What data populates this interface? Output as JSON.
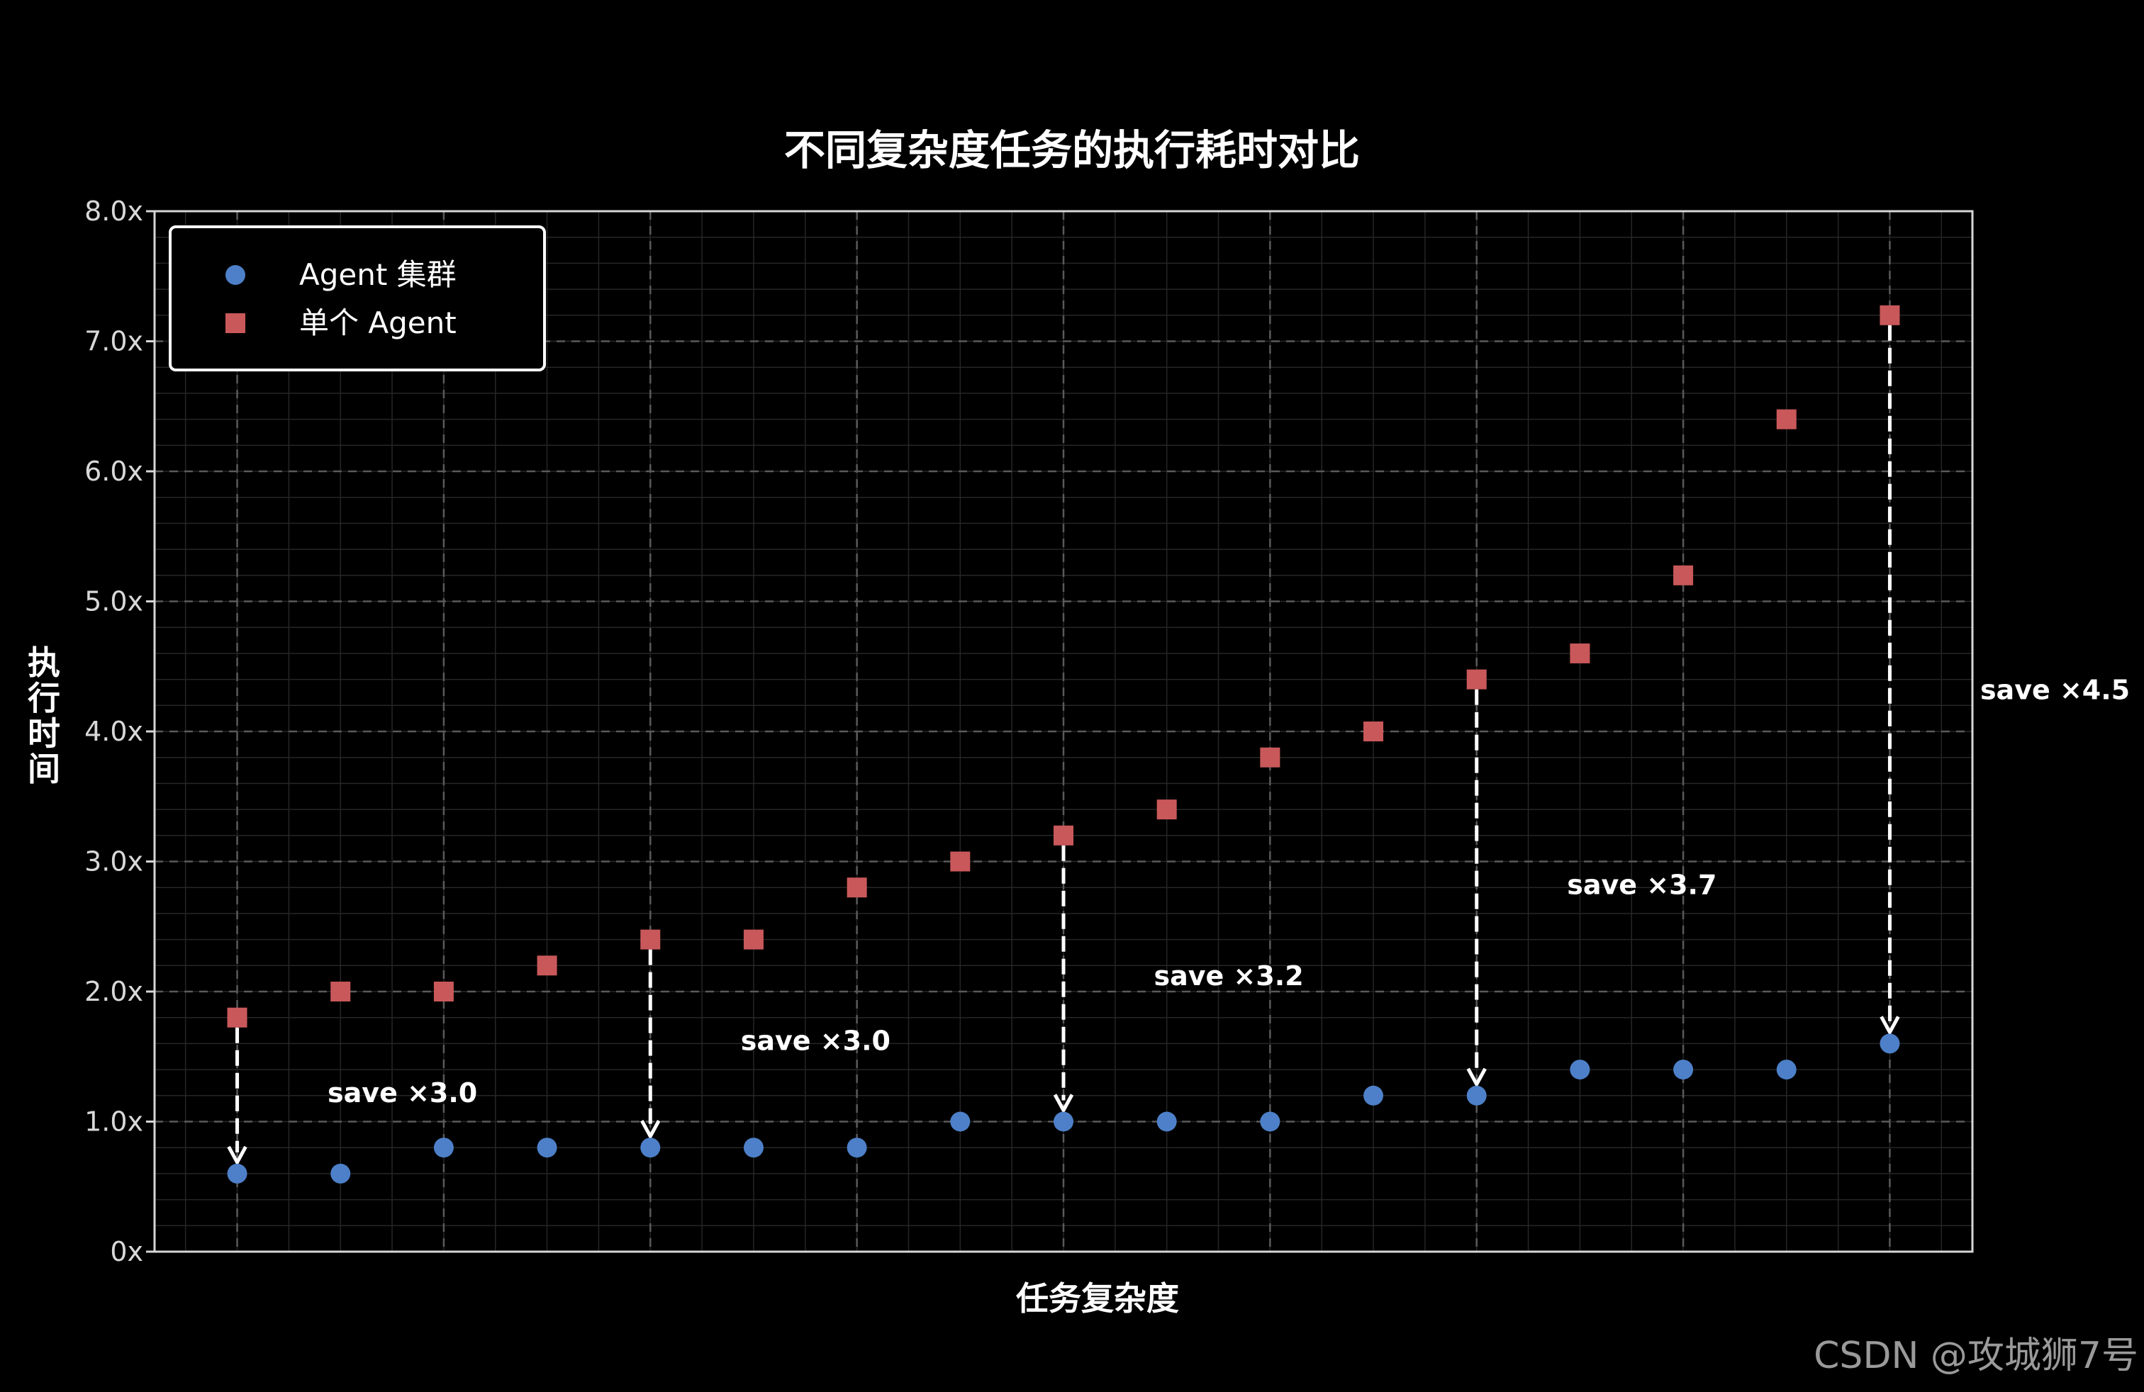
{
  "colors": {
    "background": "#000000",
    "frame": "#d6d6d6",
    "cluster": "#4d80c8",
    "single": "#c9585a",
    "grid_major": "#5a5a5a",
    "grid_minor": "#262626",
    "arrow": "#ffffff"
  },
  "watermark": "CSDN @攻城狮7号",
  "chart_data": {
    "type": "scatter",
    "title": "不同复杂度任务的执行耗时对比",
    "xlabel": "任务复杂度",
    "ylabel": "执行时间",
    "ylim": [
      0,
      8
    ],
    "xlim": [
      0.2,
      17.8
    ],
    "grid": true,
    "legend_position": "top-left",
    "y_ticks": [
      {
        "value": 0,
        "label": "0x"
      },
      {
        "value": 1,
        "label": "1.0x"
      },
      {
        "value": 2,
        "label": "2.0x"
      },
      {
        "value": 3,
        "label": "3.0x"
      },
      {
        "value": 4,
        "label": "4.0x"
      },
      {
        "value": 5,
        "label": "5.0x"
      },
      {
        "value": 6,
        "label": "6.0x"
      },
      {
        "value": 7,
        "label": "7.0x"
      },
      {
        "value": 8,
        "label": "8.0x"
      }
    ],
    "x_gridlines": [
      1,
      3,
      5,
      7,
      9,
      11,
      13,
      15,
      17
    ],
    "x": [
      1,
      2,
      3,
      4,
      5,
      6,
      7,
      8,
      9,
      10,
      11,
      12,
      13,
      14,
      15,
      16,
      17
    ],
    "series": [
      {
        "name": "Agent 集群",
        "marker": "circle",
        "color": "#4d80c8",
        "values": [
          0.6,
          0.6,
          0.8,
          0.8,
          0.8,
          0.8,
          0.8,
          1.0,
          1.0,
          1.0,
          1.0,
          1.2,
          1.2,
          1.4,
          1.4,
          1.4,
          1.6
        ]
      },
      {
        "name": "单个 Agent",
        "marker": "square",
        "color": "#c9585a",
        "values": [
          1.8,
          2.0,
          2.0,
          2.2,
          2.4,
          2.4,
          2.8,
          3.0,
          3.2,
          3.4,
          3.8,
          4.0,
          4.4,
          4.6,
          5.2,
          6.4,
          7.2
        ]
      }
    ],
    "arrows": [
      {
        "x": 1,
        "from": 1.8,
        "to": 0.6
      },
      {
        "x": 5,
        "from": 2.4,
        "to": 0.8
      },
      {
        "x": 9,
        "from": 3.2,
        "to": 1.0
      },
      {
        "x": 13,
        "from": 4.4,
        "to": 1.2
      },
      {
        "x": 17,
        "from": 7.2,
        "to": 1.6
      }
    ],
    "annotations": [
      {
        "text": "save ×3.0",
        "x": 2.6,
        "y": 1.22
      },
      {
        "text": "save ×3.0",
        "x": 6.6,
        "y": 1.62
      },
      {
        "text": "save ×3.2",
        "x": 10.6,
        "y": 2.12
      },
      {
        "text": "save ×3.7",
        "x": 14.6,
        "y": 2.82
      },
      {
        "text": "save ×4.5",
        "x": 18.6,
        "y": 4.32
      }
    ]
  }
}
